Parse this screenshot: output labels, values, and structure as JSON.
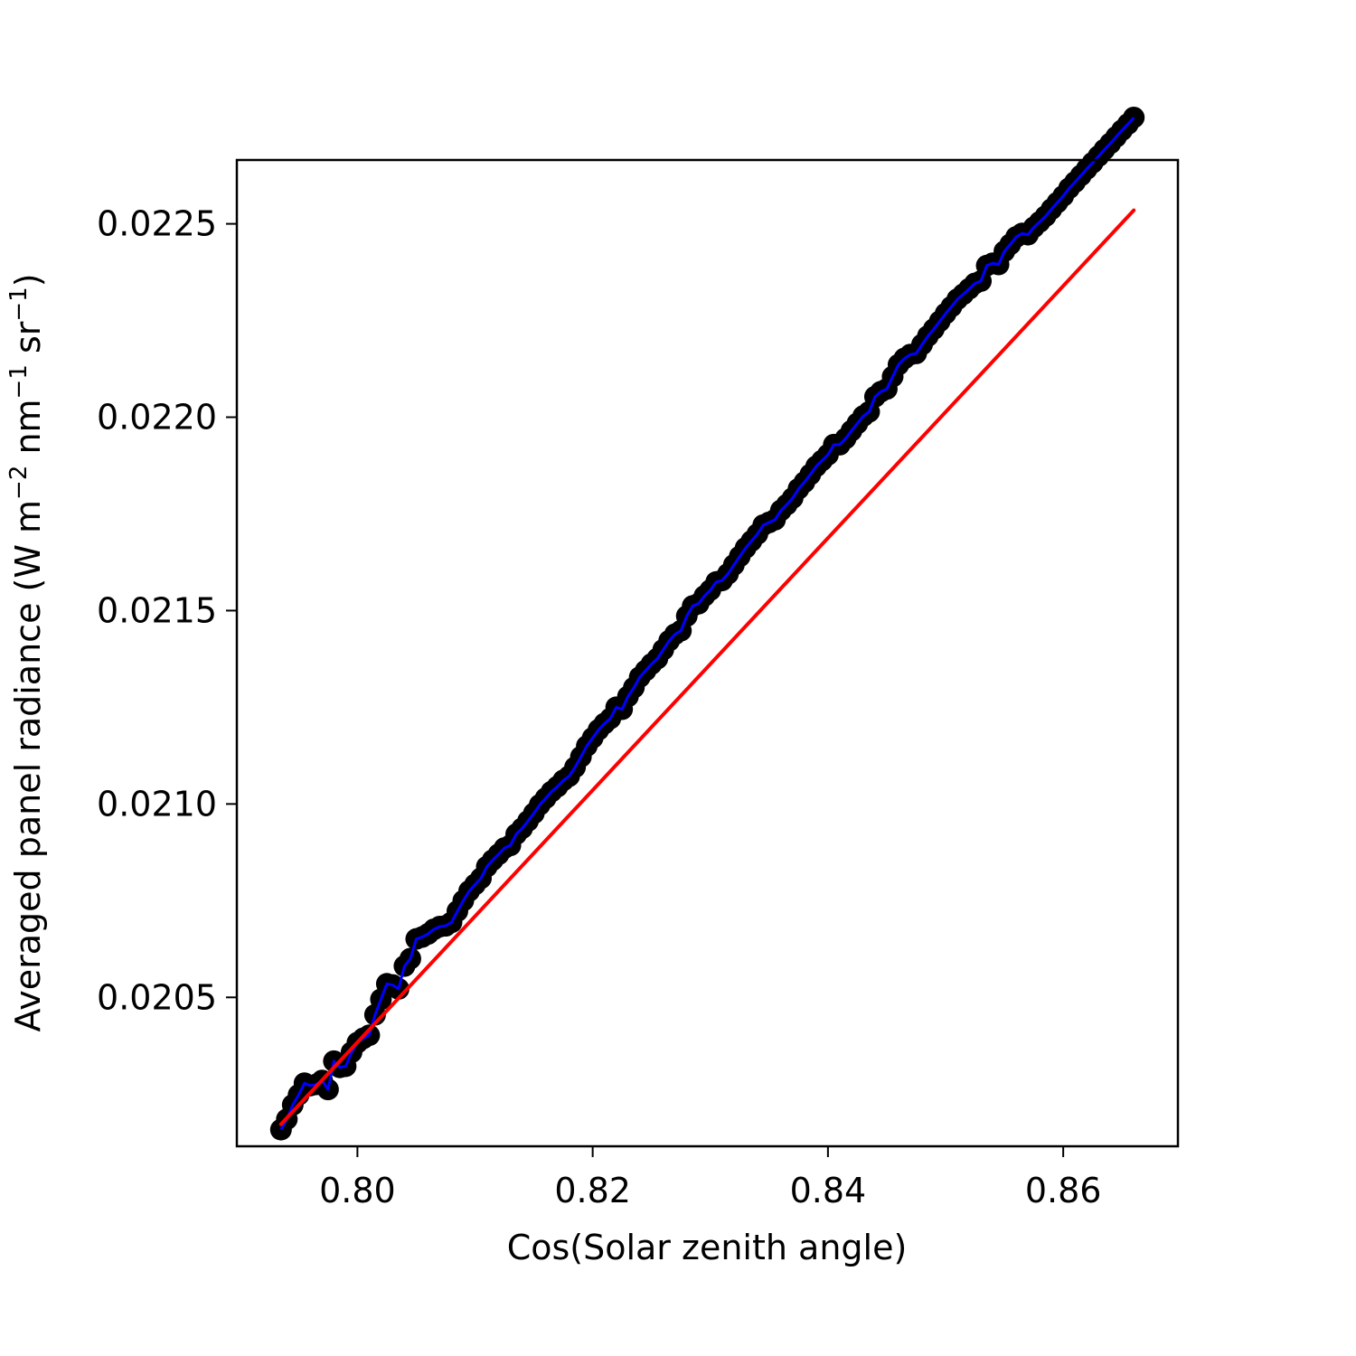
{
  "chart_data": {
    "type": "scatter",
    "title": "",
    "xlabel": "Cos(Solar zenith angle)",
    "ylabel": {
      "parts": [
        "Averaged panel radiance (W m",
        "−2",
        " nm",
        "−1",
        " sr",
        "−1",
        ")"
      ]
    },
    "xlim": [
      0.78975,
      0.86975
    ],
    "ylim": [
      0.020115,
      0.022665
    ],
    "xticks": [
      {
        "value": 0.8,
        "label": "0.80"
      },
      {
        "value": 0.82,
        "label": "0.82"
      },
      {
        "value": 0.84,
        "label": "0.84"
      },
      {
        "value": 0.86,
        "label": "0.86"
      }
    ],
    "yticks": [
      {
        "value": 0.0205,
        "label": "0.0205"
      },
      {
        "value": 0.021,
        "label": "0.0210"
      },
      {
        "value": 0.0215,
        "label": "0.0215"
      },
      {
        "value": 0.022,
        "label": "0.0220"
      },
      {
        "value": 0.0225,
        "label": "0.0225"
      }
    ],
    "grid": false,
    "legend": "none",
    "series": [
      {
        "kind": "markers+line",
        "marker_color": "#000000",
        "line_color": "#0000ff",
        "x": [
          0.7935,
          0.794,
          0.7945,
          0.795,
          0.7955,
          0.796,
          0.7965,
          0.797,
          0.7975,
          0.798,
          0.7985,
          0.799,
          0.7995,
          0.8,
          0.8005,
          0.801,
          0.8015,
          0.802,
          0.8025,
          0.803,
          0.8035,
          0.804,
          0.8045,
          0.805,
          0.8055,
          0.806,
          0.8065,
          0.807,
          0.8075,
          0.808,
          0.8085,
          0.809,
          0.8095,
          0.81,
          0.8105,
          0.811,
          0.8115,
          0.812,
          0.8125,
          0.813,
          0.8135,
          0.814,
          0.8145,
          0.815,
          0.8155,
          0.816,
          0.8165,
          0.817,
          0.8175,
          0.818,
          0.8185,
          0.819,
          0.8195,
          0.82,
          0.8205,
          0.821,
          0.8215,
          0.822,
          0.8225,
          0.823,
          0.8235,
          0.824,
          0.8245,
          0.825,
          0.8255,
          0.826,
          0.8265,
          0.827,
          0.8275,
          0.828,
          0.8285,
          0.829,
          0.8295,
          0.83,
          0.8305,
          0.831,
          0.8315,
          0.832,
          0.8325,
          0.833,
          0.8335,
          0.834,
          0.8345,
          0.835,
          0.8355,
          0.836,
          0.8365,
          0.837,
          0.8375,
          0.838,
          0.8385,
          0.839,
          0.8395,
          0.84,
          0.8405,
          0.841,
          0.8415,
          0.842,
          0.8425,
          0.843,
          0.8435,
          0.844,
          0.8445,
          0.845,
          0.8455,
          0.846,
          0.8465,
          0.847,
          0.8475,
          0.848,
          0.8485,
          0.849,
          0.8495,
          0.85,
          0.8505,
          0.851,
          0.8515,
          0.852,
          0.8525,
          0.853,
          0.8535,
          0.854,
          0.8545,
          0.855,
          0.8555,
          0.856,
          0.8565,
          0.857,
          0.8575,
          0.858,
          0.8585,
          0.859,
          0.8595,
          0.86,
          0.8605,
          0.861,
          0.8615,
          0.862,
          0.8625,
          0.863,
          0.8635,
          0.864,
          0.8645,
          0.865,
          0.8655,
          0.866
        ],
        "y": [
          0.020158,
          0.020185,
          0.020222,
          0.020248,
          0.020278,
          0.020272,
          0.020275,
          0.020285,
          0.020262,
          0.020335,
          0.020319,
          0.020322,
          0.020358,
          0.020383,
          0.020394,
          0.020402,
          0.020455,
          0.020495,
          0.020535,
          0.020532,
          0.020522,
          0.020581,
          0.0206,
          0.020651,
          0.020656,
          0.020664,
          0.020676,
          0.020683,
          0.020685,
          0.020694,
          0.020723,
          0.02075,
          0.020775,
          0.020792,
          0.020808,
          0.020838,
          0.020855,
          0.02087,
          0.020886,
          0.020893,
          0.020922,
          0.020937,
          0.020956,
          0.020976,
          0.020998,
          0.021015,
          0.021032,
          0.021045,
          0.021061,
          0.021072,
          0.021095,
          0.021122,
          0.02115,
          0.021171,
          0.021192,
          0.021208,
          0.021221,
          0.02125,
          0.021245,
          0.021278,
          0.021301,
          0.021328,
          0.021345,
          0.021362,
          0.021376,
          0.021399,
          0.021422,
          0.021439,
          0.021448,
          0.021486,
          0.021512,
          0.021518,
          0.021538,
          0.021553,
          0.021574,
          0.021578,
          0.021595,
          0.021618,
          0.02164,
          0.021662,
          0.02168,
          0.021698,
          0.021721,
          0.021728,
          0.021735,
          0.021759,
          0.021774,
          0.021791,
          0.021815,
          0.021832,
          0.021852,
          0.021873,
          0.021888,
          0.021903,
          0.021929,
          0.021929,
          0.021945,
          0.021965,
          0.021984,
          0.022003,
          0.022014,
          0.022053,
          0.022066,
          0.022073,
          0.022105,
          0.022136,
          0.022152,
          0.022162,
          0.022165,
          0.022188,
          0.02221,
          0.022228,
          0.022248,
          0.022268,
          0.022286,
          0.022305,
          0.022318,
          0.022332,
          0.022346,
          0.022352,
          0.022392,
          0.022398,
          0.022395,
          0.022429,
          0.022447,
          0.022466,
          0.022475,
          0.022472,
          0.022491,
          0.022505,
          0.02252,
          0.022538,
          0.022555,
          0.022572,
          0.022592,
          0.022608,
          0.022625,
          0.022642,
          0.022658,
          0.022675,
          0.022692,
          0.022708,
          0.022725,
          0.022742,
          0.022758,
          0.022775
        ]
      },
      {
        "kind": "fit-line",
        "line_color": "#ff0000",
        "x": [
          0.7935,
          0.866
        ],
        "y": [
          0.020172,
          0.022535
        ]
      }
    ]
  }
}
